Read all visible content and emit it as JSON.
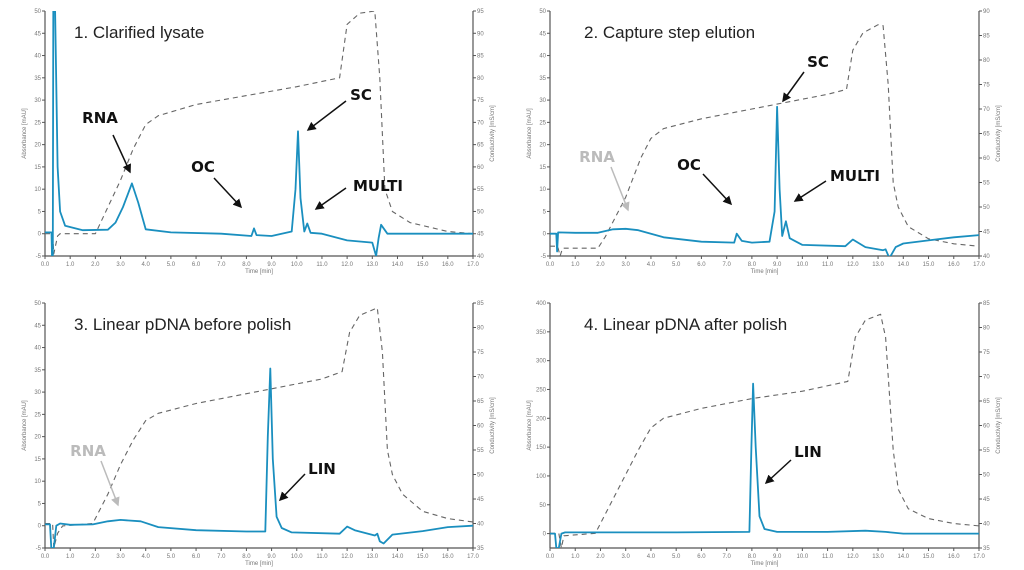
{
  "chart_data": [
    {
      "type": "line",
      "title": "1. Clarified lysate",
      "xlabel": "Time [min]",
      "ylabel": "Absorbance [mAU]",
      "y2label": "Conductivity [mS/cm]",
      "xlim": [
        0,
        17
      ],
      "ylim": [
        -5,
        50
      ],
      "y2lim": [
        40,
        95
      ],
      "ystep": 5,
      "y2step": 5,
      "xstep": 1,
      "series": [
        {
          "axis": "left",
          "color": "#1a8fbf",
          "style": "solid",
          "points": [
            [
              0,
              0.3
            ],
            [
              0.26,
              0.3
            ],
            [
              0.28,
              -5
            ],
            [
              0.31,
              -5
            ],
            [
              0.33,
              50
            ],
            [
              0.4,
              50
            ],
            [
              0.5,
              15
            ],
            [
              0.6,
              5
            ],
            [
              0.8,
              1.8
            ],
            [
              1.5,
              0.8
            ],
            [
              2.5,
              0.9
            ],
            [
              2.8,
              2.5
            ],
            [
              3.1,
              6
            ],
            [
              3.45,
              11.3
            ],
            [
              3.7,
              7
            ],
            [
              4.0,
              1
            ],
            [
              5,
              0.3
            ],
            [
              7,
              0
            ],
            [
              8.2,
              -0.5
            ],
            [
              8.3,
              1.2
            ],
            [
              8.4,
              -0.3
            ],
            [
              9,
              -0.5
            ],
            [
              9.8,
              0.5
            ],
            [
              9.95,
              10
            ],
            [
              10.05,
              23
            ],
            [
              10.15,
              8
            ],
            [
              10.3,
              0.5
            ],
            [
              10.42,
              2.3
            ],
            [
              10.55,
              0.2
            ],
            [
              11,
              0
            ],
            [
              12,
              -1.5
            ],
            [
              13,
              -2
            ],
            [
              13.15,
              -5
            ],
            [
              13.25,
              -1
            ],
            [
              13.35,
              2
            ],
            [
              13.6,
              0
            ],
            [
              17,
              0
            ]
          ]
        },
        {
          "axis": "right",
          "color": "#666666",
          "style": "dashed",
          "points": [
            [
              0,
              45
            ],
            [
              0.3,
              45
            ],
            [
              0.35,
              40.5
            ],
            [
              0.5,
              44.5
            ],
            [
              0.6,
              45
            ],
            [
              2,
              45
            ],
            [
              3,
              57
            ],
            [
              3.5,
              64
            ],
            [
              4,
              69.5
            ],
            [
              4.5,
              71.5
            ],
            [
              6,
              74
            ],
            [
              8,
              76
            ],
            [
              10,
              78
            ],
            [
              11.7,
              80
            ],
            [
              12.0,
              92
            ],
            [
              12.5,
              94.5
            ],
            [
              13.1,
              95
            ],
            [
              13.3,
              80
            ],
            [
              13.5,
              55
            ],
            [
              13.8,
              50
            ],
            [
              14.5,
              47.5
            ],
            [
              16,
              45.5
            ],
            [
              17,
              45
            ]
          ]
        }
      ],
      "annotations": [
        {
          "text": "RNA",
          "x": 3.45,
          "y": 11.3,
          "color": "#111111"
        },
        {
          "text": "OC",
          "x": 8.3,
          "y": 1.2,
          "color": "#111111"
        },
        {
          "text": "SC",
          "x": 10.05,
          "y": 23,
          "color": "#111111"
        },
        {
          "text": "MULTI",
          "x": 10.42,
          "y": 2.3,
          "color": "#111111"
        }
      ]
    },
    {
      "type": "line",
      "title": "2. Capture step elution",
      "xlabel": "Time [min]",
      "ylabel": "Absorbance [mAU]",
      "y2label": "Conductivity [mS/cm]",
      "xlim": [
        0,
        17
      ],
      "ylim": [
        -5,
        50
      ],
      "y2lim": [
        40,
        90
      ],
      "ystep": 5,
      "y2step": 5,
      "xstep": 1,
      "series": [
        {
          "axis": "left",
          "color": "#1a8fbf",
          "style": "solid",
          "points": [
            [
              0,
              0
            ],
            [
              0.25,
              0
            ],
            [
              0.28,
              -4
            ],
            [
              0.32,
              0.3
            ],
            [
              1,
              0.2
            ],
            [
              1.9,
              0.2
            ],
            [
              2.5,
              1
            ],
            [
              3,
              1.1
            ],
            [
              3.5,
              0.8
            ],
            [
              4.5,
              -0.8
            ],
            [
              6,
              -1.8
            ],
            [
              7.3,
              -2
            ],
            [
              7.4,
              0
            ],
            [
              7.6,
              -1.6
            ],
            [
              8,
              -2
            ],
            [
              8.7,
              -1.8
            ],
            [
              8.9,
              5
            ],
            [
              9.0,
              28.5
            ],
            [
              9.1,
              10
            ],
            [
              9.2,
              -0.5
            ],
            [
              9.35,
              2.8
            ],
            [
              9.5,
              -1
            ],
            [
              9.7,
              -1.6
            ],
            [
              10,
              -2.5
            ],
            [
              11.7,
              -2.8
            ],
            [
              12,
              -1.3
            ],
            [
              12.5,
              -3
            ],
            [
              13.2,
              -3.7
            ],
            [
              13.3,
              -3.5
            ],
            [
              13.45,
              -5.5
            ],
            [
              13.7,
              -3
            ],
            [
              14,
              -2.2
            ],
            [
              15,
              -1.5
            ],
            [
              16,
              -0.8
            ],
            [
              17,
              -0.3
            ]
          ]
        },
        {
          "axis": "right",
          "color": "#666666",
          "style": "dashed",
          "points": [
            [
              0,
              42
            ],
            [
              0.3,
              42
            ],
            [
              0.4,
              40
            ],
            [
              0.5,
              41.6
            ],
            [
              1.9,
              41.6
            ],
            [
              2.2,
              44
            ],
            [
              3,
              52
            ],
            [
              3.6,
              60
            ],
            [
              4,
              64
            ],
            [
              4.5,
              66
            ],
            [
              6,
              68
            ],
            [
              8,
              70
            ],
            [
              9,
              71
            ],
            [
              11,
              73
            ],
            [
              11.75,
              74
            ],
            [
              12,
              82
            ],
            [
              12.4,
              85.5
            ],
            [
              13,
              87.2
            ],
            [
              13.2,
              87
            ],
            [
              13.4,
              75
            ],
            [
              13.6,
              55
            ],
            [
              13.8,
              50
            ],
            [
              14.2,
              46
            ],
            [
              15,
              43.5
            ],
            [
              16,
              42.5
            ],
            [
              17,
              42
            ]
          ]
        }
      ],
      "annotations": [
        {
          "text": "RNA",
          "x": 3.1,
          "y": 1.1,
          "color": "#bbbbbb"
        },
        {
          "text": "OC",
          "x": 7.4,
          "y": 0,
          "color": "#111111"
        },
        {
          "text": "SC",
          "x": 9.0,
          "y": 28.5,
          "color": "#111111"
        },
        {
          "text": "MULTI",
          "x": 9.35,
          "y": 2.8,
          "color": "#111111"
        }
      ]
    },
    {
      "type": "line",
      "title": "3. Linear pDNA before polish",
      "xlabel": "Time [min]",
      "ylabel": "Absorbance [mAU]",
      "y2label": "Conductivity [mS/cm]",
      "xlim": [
        0,
        17
      ],
      "ylim": [
        -5,
        50
      ],
      "y2lim": [
        35,
        85
      ],
      "ystep": 5,
      "y2step": 5,
      "xstep": 1,
      "series": [
        {
          "axis": "left",
          "color": "#1a8fbf",
          "style": "solid",
          "points": [
            [
              0,
              0.3
            ],
            [
              0.2,
              0.3
            ],
            [
              0.25,
              -5
            ],
            [
              0.35,
              -5
            ],
            [
              0.45,
              0
            ],
            [
              0.6,
              0.5
            ],
            [
              1,
              0.2
            ],
            [
              1.9,
              0.3
            ],
            [
              2.5,
              1
            ],
            [
              3,
              1.3
            ],
            [
              3.8,
              1
            ],
            [
              4.5,
              -0.3
            ],
            [
              6,
              -1
            ],
            [
              8,
              -1.3
            ],
            [
              8.75,
              -1.3
            ],
            [
              8.85,
              20
            ],
            [
              8.95,
              35.3
            ],
            [
              9.05,
              15
            ],
            [
              9.2,
              2
            ],
            [
              9.4,
              -0.5
            ],
            [
              9.8,
              -1.5
            ],
            [
              11.7,
              -1.8
            ],
            [
              12,
              -0.2
            ],
            [
              12.3,
              -1
            ],
            [
              13.1,
              -2.2
            ],
            [
              13.2,
              -1.8
            ],
            [
              13.3,
              -3.5
            ],
            [
              13.45,
              -4
            ],
            [
              13.8,
              -2
            ],
            [
              15,
              -1.2
            ],
            [
              16,
              -0.3
            ],
            [
              17,
              0
            ]
          ]
        },
        {
          "axis": "right",
          "color": "#666666",
          "style": "dashed",
          "points": [
            [
              0,
              40
            ],
            [
              0.3,
              40
            ],
            [
              0.35,
              35
            ],
            [
              0.5,
              38
            ],
            [
              0.7,
              39.5
            ],
            [
              1.9,
              40
            ],
            [
              2.5,
              46
            ],
            [
              3,
              52
            ],
            [
              3.5,
              57
            ],
            [
              4,
              61
            ],
            [
              4.5,
              62.5
            ],
            [
              6,
              64.5
            ],
            [
              8,
              66.5
            ],
            [
              9,
              67.5
            ],
            [
              11,
              69.5
            ],
            [
              11.8,
              71
            ],
            [
              12.1,
              79
            ],
            [
              12.5,
              82.5
            ],
            [
              13.2,
              84
            ],
            [
              13.4,
              75
            ],
            [
              13.6,
              55
            ],
            [
              13.8,
              50
            ],
            [
              14.2,
              46
            ],
            [
              15,
              42.5
            ],
            [
              16,
              41
            ],
            [
              17,
              40.3
            ]
          ]
        }
      ],
      "annotations": [
        {
          "text": "RNA",
          "x": 3.0,
          "y": 1.3,
          "color": "#bbbbbb"
        },
        {
          "text": "LIN",
          "x": 9.1,
          "y": 10,
          "color": "#111111"
        }
      ]
    },
    {
      "type": "line",
      "title": "4. Linear pDNA after polish",
      "xlabel": "Time [min]",
      "ylabel": "Absorbance [mAU]",
      "y2label": "Conductivity [mS/cm]",
      "xlim": [
        0,
        17
      ],
      "ylim": [
        -25,
        400
      ],
      "y2lim": [
        35,
        85
      ],
      "ystep": 50,
      "y2step": 5,
      "xstep": 1,
      "series": [
        {
          "axis": "left",
          "color": "#1a8fbf",
          "style": "solid",
          "points": [
            [
              0,
              0
            ],
            [
              0.2,
              0
            ],
            [
              0.25,
              -25
            ],
            [
              0.35,
              -25
            ],
            [
              0.45,
              0
            ],
            [
              0.6,
              2
            ],
            [
              2,
              2
            ],
            [
              5,
              2
            ],
            [
              7.9,
              3
            ],
            [
              7.98,
              150
            ],
            [
              8.05,
              260
            ],
            [
              8.15,
              150
            ],
            [
              8.3,
              30
            ],
            [
              8.5,
              8
            ],
            [
              9,
              3
            ],
            [
              11,
              3
            ],
            [
              12.5,
              5
            ],
            [
              13.3,
              3
            ],
            [
              14,
              0
            ],
            [
              17,
              0
            ]
          ]
        },
        {
          "axis": "right",
          "color": "#666666",
          "style": "dashed",
          "points": [
            [
              0,
              38
            ],
            [
              0.35,
              38
            ],
            [
              0.45,
              35
            ],
            [
              0.55,
              37.5
            ],
            [
              1.8,
              38
            ],
            [
              2.2,
              42
            ],
            [
              3,
              50
            ],
            [
              3.5,
              55
            ],
            [
              4,
              59.5
            ],
            [
              4.5,
              61.5
            ],
            [
              6,
              63.5
            ],
            [
              8,
              65.5
            ],
            [
              10,
              67
            ],
            [
              11.8,
              69
            ],
            [
              12.1,
              78
            ],
            [
              12.5,
              81.5
            ],
            [
              13.1,
              82.7
            ],
            [
              13.3,
              78
            ],
            [
              13.6,
              55
            ],
            [
              13.8,
              47
            ],
            [
              14.2,
              43
            ],
            [
              15,
              41
            ],
            [
              16,
              40
            ],
            [
              17,
              39.5
            ]
          ]
        }
      ],
      "annotations": [
        {
          "text": "LIN",
          "x": 8.3,
          "y": 60,
          "color": "#111111"
        }
      ]
    }
  ]
}
